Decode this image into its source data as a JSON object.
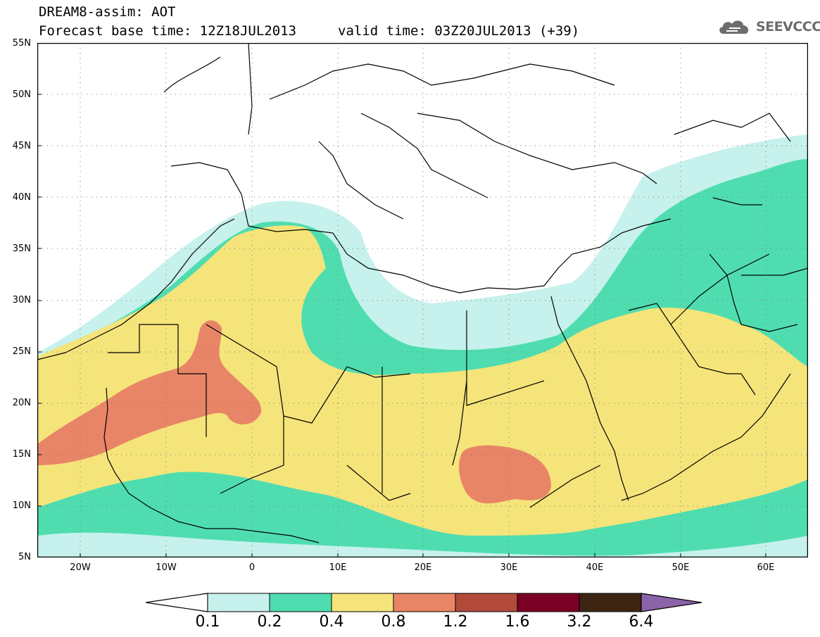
{
  "header": {
    "title": "DREAM8-assim: AOT",
    "base_time": "Forecast base time: 12Z18JUL2013",
    "valid_time": "valid time: 03Z20JUL2013 (+39)",
    "logo_text": "SEEVCCC"
  },
  "map": {
    "projection": "lat-lon",
    "lon_range": [
      -25,
      65
    ],
    "lat_range": [
      5,
      55
    ],
    "lat_labels": [
      "55N",
      "50N",
      "45N",
      "40N",
      "35N",
      "30N",
      "25N",
      "20N",
      "15N",
      "10N",
      "5N"
    ],
    "lon_labels": [
      "20W",
      "10W",
      "0",
      "10E",
      "20E",
      "30E",
      "40E",
      "50E",
      "60E"
    ],
    "grid": "dotted"
  },
  "colorbar": {
    "labels": [
      "0.1",
      "0.2",
      "0.4",
      "0.8",
      "1.2",
      "1.6",
      "3.2",
      "6.4"
    ],
    "colors": [
      "#ffffff",
      "#c6f1ec",
      "#4fddb0",
      "#f5e47a",
      "#e88566",
      "#b24a3c",
      "#7a0025",
      "#3d2413",
      "#8a63a8"
    ]
  }
}
